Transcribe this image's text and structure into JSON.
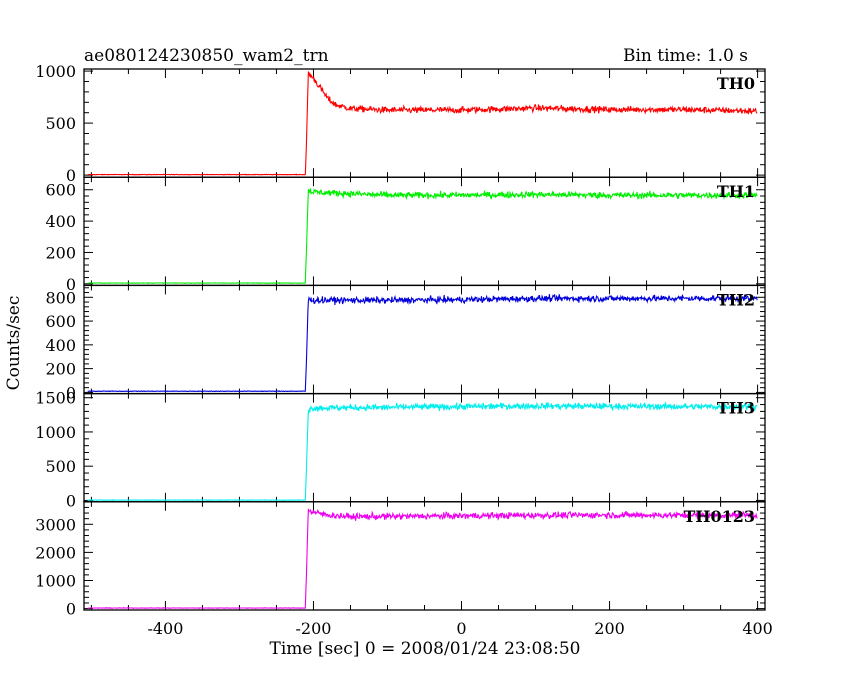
{
  "header": {
    "title": "ae080124230850_wam2_trn",
    "bin_time": "Bin time: 1.0 s"
  },
  "axes": {
    "xlabel": "Time [sec] 0 = 2008/01/24 23:08:50",
    "ylabel": "Counts/sec"
  },
  "chart_data": {
    "type": "line",
    "title": "ae080124230850_wam2_trn",
    "xlabel": "Time [sec] 0 = 2008/01/24 23:08:50",
    "ylabel": "Counts/sec",
    "xlim": [
      -510,
      410
    ],
    "x_ticks": [
      -400,
      -200,
      0,
      200,
      400
    ],
    "grid": false,
    "trigger_time": -210,
    "panels": [
      {
        "name": "TH0",
        "color": "#ff0000",
        "ylim": [
          -20,
          1020
        ],
        "y_ticks": [
          0,
          500,
          1000
        ],
        "series": [
          {
            "x": -505,
            "y": 5
          },
          {
            "x": -211,
            "y": 5
          },
          {
            "x": -210,
            "y": 180
          },
          {
            "x": -207,
            "y": 980
          },
          {
            "x": -200,
            "y": 930
          },
          {
            "x": -190,
            "y": 830
          },
          {
            "x": -180,
            "y": 730
          },
          {
            "x": -170,
            "y": 675
          },
          {
            "x": -150,
            "y": 640
          },
          {
            "x": -100,
            "y": 625
          },
          {
            "x": 0,
            "y": 625
          },
          {
            "x": 100,
            "y": 645
          },
          {
            "x": 200,
            "y": 630
          },
          {
            "x": 300,
            "y": 630
          },
          {
            "x": 400,
            "y": 615
          }
        ]
      },
      {
        "name": "TH1",
        "color": "#00ee00",
        "ylim": [
          -10,
          680
        ],
        "y_ticks": [
          0,
          200,
          400,
          600
        ],
        "series": [
          {
            "x": -505,
            "y": 5
          },
          {
            "x": -211,
            "y": 5
          },
          {
            "x": -210,
            "y": 140
          },
          {
            "x": -207,
            "y": 600
          },
          {
            "x": -200,
            "y": 585
          },
          {
            "x": -100,
            "y": 565
          },
          {
            "x": 0,
            "y": 565
          },
          {
            "x": 100,
            "y": 570
          },
          {
            "x": 200,
            "y": 565
          },
          {
            "x": 300,
            "y": 565
          },
          {
            "x": 400,
            "y": 565
          }
        ]
      },
      {
        "name": "TH2",
        "color": "#0000dd",
        "ylim": [
          -10,
          900
        ],
        "y_ticks": [
          0,
          200,
          400,
          600,
          800
        ],
        "series": [
          {
            "x": -505,
            "y": 10
          },
          {
            "x": -211,
            "y": 10
          },
          {
            "x": -210,
            "y": 170
          },
          {
            "x": -207,
            "y": 780
          },
          {
            "x": -200,
            "y": 775
          },
          {
            "x": -100,
            "y": 775
          },
          {
            "x": 0,
            "y": 780
          },
          {
            "x": 100,
            "y": 790
          },
          {
            "x": 200,
            "y": 790
          },
          {
            "x": 300,
            "y": 790
          },
          {
            "x": 400,
            "y": 790
          }
        ]
      },
      {
        "name": "TH3",
        "color": "#00eeee",
        "ylim": [
          -20,
          1560
        ],
        "y_ticks": [
          0,
          500,
          1000,
          1500
        ],
        "series": [
          {
            "x": -505,
            "y": 5
          },
          {
            "x": -211,
            "y": 5
          },
          {
            "x": -210,
            "y": 300
          },
          {
            "x": -207,
            "y": 1330
          },
          {
            "x": -200,
            "y": 1350
          },
          {
            "x": -100,
            "y": 1360
          },
          {
            "x": 0,
            "y": 1370
          },
          {
            "x": 100,
            "y": 1380
          },
          {
            "x": 200,
            "y": 1375
          },
          {
            "x": 300,
            "y": 1370
          },
          {
            "x": 400,
            "y": 1370
          }
        ]
      },
      {
        "name": "TH0123",
        "color": "#ee00ee",
        "ylim": [
          -50,
          3800
        ],
        "y_ticks": [
          0,
          1000,
          2000,
          3000
        ],
        "series": [
          {
            "x": -505,
            "y": 20
          },
          {
            "x": -211,
            "y": 20
          },
          {
            "x": -210,
            "y": 800
          },
          {
            "x": -207,
            "y": 3500
          },
          {
            "x": -200,
            "y": 3420
          },
          {
            "x": -180,
            "y": 3330
          },
          {
            "x": -150,
            "y": 3270
          },
          {
            "x": -100,
            "y": 3280
          },
          {
            "x": 0,
            "y": 3300
          },
          {
            "x": 100,
            "y": 3320
          },
          {
            "x": 200,
            "y": 3330
          },
          {
            "x": 300,
            "y": 3320
          },
          {
            "x": 400,
            "y": 3330
          }
        ]
      }
    ]
  }
}
